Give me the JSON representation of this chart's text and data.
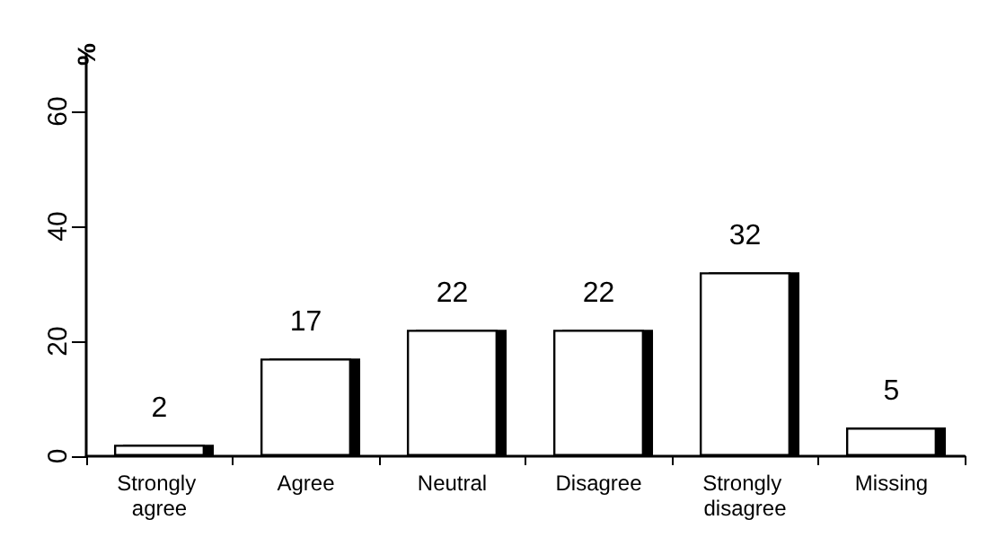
{
  "chart_data": {
    "type": "bar",
    "ylabel": "%",
    "categories": [
      "Strongly agree",
      "Agree",
      "Neutral",
      "Disagree",
      "Strongly disagree",
      "Missing"
    ],
    "values": [
      2,
      17,
      22,
      22,
      32,
      5
    ],
    "color": "#ffffff",
    "ylim": [
      0,
      70
    ],
    "yticks": [
      0,
      20,
      40,
      60
    ],
    "grid": false,
    "data_labels": true
  }
}
